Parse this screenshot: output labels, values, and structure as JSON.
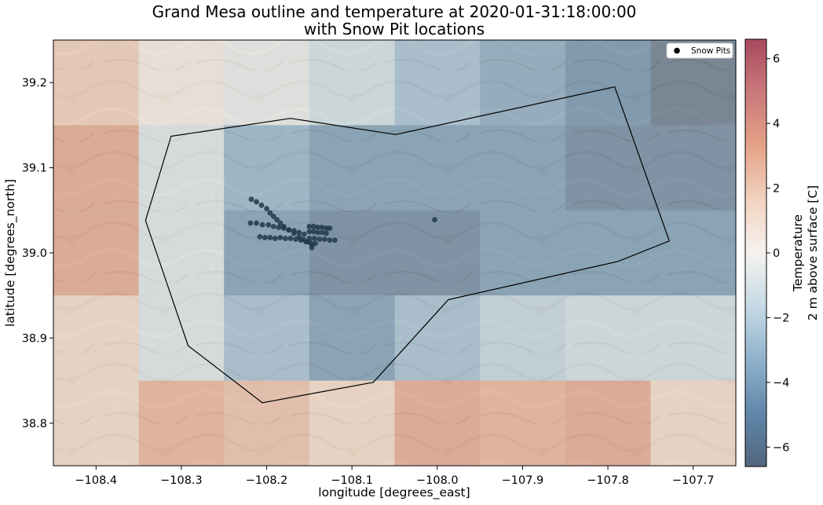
{
  "chart_data": {
    "type": "heatmap",
    "title": "Grand Mesa outline and temperature at 2020-01-31:18:00:00",
    "subtitle": "with Snow Pit locations",
    "xlabel": "longitude [degrees_east]",
    "ylabel": "latitude [degrees_north]",
    "xlim": [
      -108.45,
      -107.65
    ],
    "ylim": [
      38.75,
      39.25
    ],
    "x_ticks": [
      -108.4,
      -108.3,
      -108.2,
      -108.1,
      -108.0,
      -107.9,
      -107.8,
      -107.7
    ],
    "x_tick_labels": [
      "−108.4",
      "−108.3",
      "−108.2",
      "−108.1",
      "−108.0",
      "−107.9",
      "−107.8",
      "−107.7"
    ],
    "y_ticks": [
      38.8,
      38.9,
      39.0,
      39.1,
      39.2
    ],
    "y_tick_labels": [
      "38.8",
      "38.9",
      "39.0",
      "39.1",
      "39.2"
    ],
    "grid": false,
    "background": "satellite imagery",
    "temperature_grid": {
      "lon_edges": [
        -108.45,
        -108.35,
        -108.25,
        -108.15,
        -108.05,
        -107.95,
        -107.85,
        -107.75,
        -107.65
      ],
      "lat_edges": [
        39.25,
        39.15,
        39.05,
        38.95,
        38.85,
        38.75
      ],
      "values_c": [
        [
          2.0,
          0.5,
          -0.5,
          -1.5,
          -3.0,
          -4.0,
          -5.0,
          -6.5
        ],
        [
          3.5,
          -1.0,
          -3.5,
          -4.5,
          -4.5,
          -4.5,
          -5.5,
          -5.5
        ],
        [
          3.5,
          -1.0,
          -4.5,
          -5.5,
          -5.5,
          -4.5,
          -4.5,
          -4.5
        ],
        [
          1.5,
          -1.0,
          -3.0,
          -4.5,
          -3.0,
          -2.0,
          -1.5,
          -1.5
        ],
        [
          1.5,
          3.0,
          2.5,
          1.5,
          3.5,
          3.0,
          3.5,
          1.5
        ]
      ]
    },
    "outline": {
      "name": "Grand Mesa outline",
      "lon": [
        -108.312,
        -108.172,
        -108.049,
        -107.792,
        -107.728,
        -107.788,
        -107.987,
        -108.075,
        -108.205,
        -108.292,
        -108.342,
        -108.312
      ],
      "lat": [
        39.137,
        39.158,
        39.139,
        39.195,
        39.014,
        38.99,
        38.945,
        38.848,
        38.824,
        38.891,
        39.038,
        39.137
      ]
    },
    "series": [
      {
        "name": "Snow Pits",
        "marker": "circle",
        "color": "#1f3a4a",
        "lon": [
          -108.218,
          -108.212,
          -108.206,
          -108.2,
          -108.196,
          -108.192,
          -108.188,
          -108.184,
          -108.18,
          -108.174,
          -108.168,
          -108.162,
          -108.157,
          -108.152,
          -108.147,
          -108.219,
          -108.212,
          -108.205,
          -108.198,
          -108.192,
          -108.186,
          -108.18,
          -108.174,
          -108.168,
          -108.162,
          -108.156,
          -108.208,
          -108.202,
          -108.196,
          -108.19,
          -108.184,
          -108.178,
          -108.172,
          -108.166,
          -108.16,
          -108.154,
          -108.149,
          -108.143,
          -108.15,
          -108.145,
          -108.14,
          -108.135,
          -108.13,
          -108.126,
          -108.15,
          -108.145,
          -108.14,
          -108.135,
          -108.13,
          -108.15,
          -108.144,
          -108.138,
          -108.132,
          -108.126,
          -108.12,
          -108.147,
          -108.003
        ],
        "lat": [
          39.063,
          39.06,
          39.056,
          39.052,
          39.047,
          39.043,
          39.039,
          39.035,
          39.031,
          39.027,
          39.023,
          39.019,
          39.016,
          39.013,
          39.01,
          39.035,
          39.035,
          39.033,
          39.033,
          39.031,
          39.03,
          39.029,
          39.027,
          39.026,
          39.024,
          39.022,
          39.019,
          39.018,
          39.018,
          39.017,
          39.018,
          39.017,
          39.017,
          39.016,
          39.015,
          39.013,
          39.012,
          39.011,
          39.031,
          39.031,
          39.03,
          39.03,
          39.029,
          39.029,
          39.025,
          39.025,
          39.024,
          39.024,
          39.023,
          39.017,
          39.017,
          39.016,
          39.016,
          39.015,
          39.015,
          39.006,
          39.039
        ]
      }
    ],
    "legend": {
      "position": "top-right",
      "entries": [
        "Snow Pits"
      ]
    },
    "colorbar": {
      "label_line1": "Temperature",
      "label_line2": "2 m above surface [C]",
      "vmin": -6.6,
      "vmax": 6.6,
      "ticks": [
        6,
        4,
        2,
        0,
        -2,
        -4,
        -6
      ],
      "tick_labels": [
        "6",
        "4",
        "2",
        "0",
        "−2",
        "−4",
        "−6"
      ],
      "colormap": "RdBu_r"
    }
  }
}
